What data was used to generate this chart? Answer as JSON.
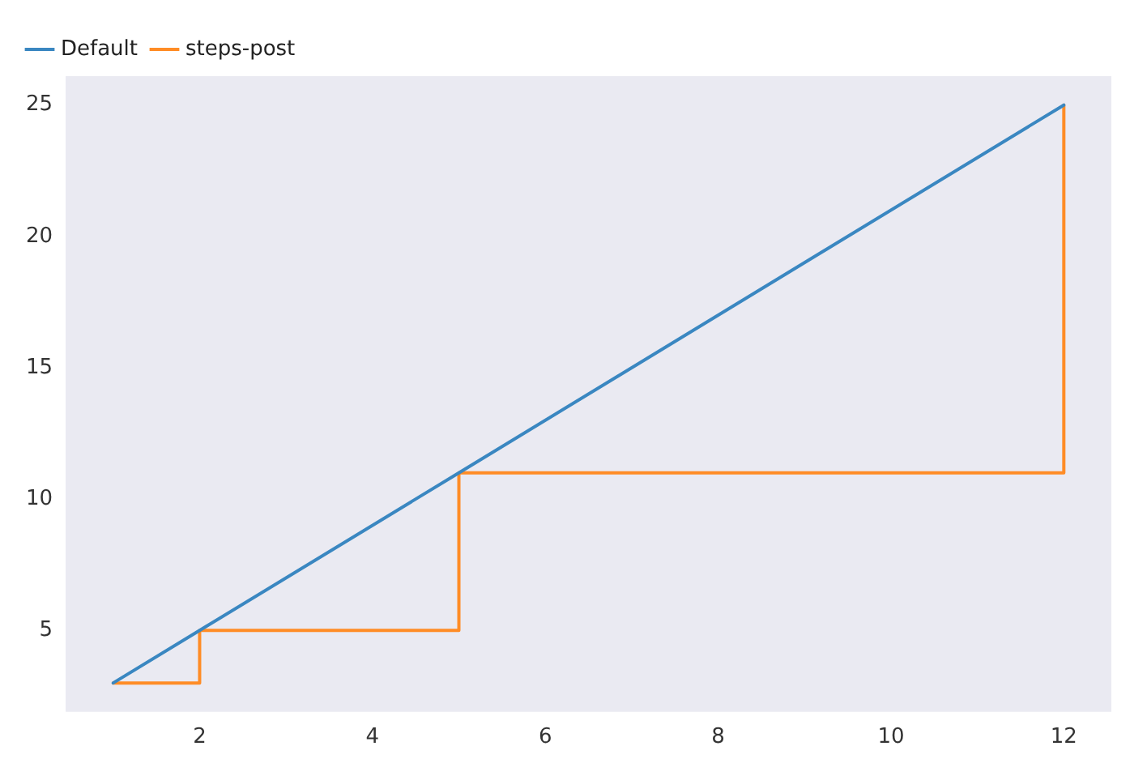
{
  "chart_data": {
    "type": "line",
    "x": [
      1,
      2,
      5,
      12
    ],
    "series": [
      {
        "name": "Default",
        "color": "#3a87c1",
        "values": [
          3,
          5,
          11,
          25
        ]
      },
      {
        "name": "steps-post",
        "type": "step",
        "color": "#ff8c26",
        "values": [
          3,
          5,
          11,
          25
        ]
      }
    ],
    "xlim": [
      0.45,
      12.55
    ],
    "xticks": [
      2,
      4,
      6,
      8,
      10,
      12
    ],
    "ylim": [
      1.9,
      26.1
    ],
    "yticks": [
      5,
      10,
      15,
      20,
      25
    ],
    "grid": false,
    "legend": "top left",
    "marker": "none",
    "line_style": "solid"
  }
}
